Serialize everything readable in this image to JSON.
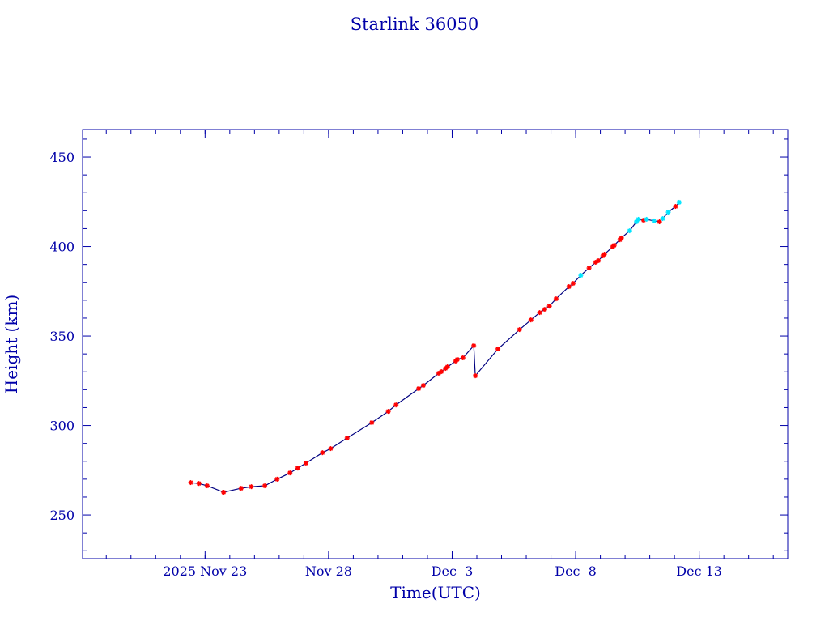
{
  "chart_data": {
    "type": "scatter",
    "title": "Starlink 36050",
    "xlabel": "Time(UTC)",
    "ylabel": "Height (km)",
    "xlim": [
      "2025-11-18T01:00",
      "2025-12-16T14:00"
    ],
    "ylim": [
      225.6,
      465.4
    ],
    "x_ticks": [
      {
        "date": "2025-11-23T00:00",
        "label": "2025 Nov 23"
      },
      {
        "date": "2025-11-28T00:00",
        "label": "Nov 28"
      },
      {
        "date": "2025-12-03T00:00",
        "label": "Dec  3"
      },
      {
        "date": "2025-12-08T00:00",
        "label": "Dec  8"
      },
      {
        "date": "2025-12-13T00:00",
        "label": "Dec 13"
      }
    ],
    "y_ticks": [
      250,
      300,
      350,
      400,
      450
    ],
    "grid": false,
    "colors": {
      "axis": "#0000a8",
      "line": "#000080",
      "marker_red": "#ff0000",
      "marker_cyan": "#00e5ff"
    },
    "points": [
      [
        "2025-11-22T10:00",
        268.1,
        "red"
      ],
      [
        "2025-11-22T18:00",
        267.6,
        "red"
      ],
      [
        "2025-11-23T02:00",
        266.3,
        "red"
      ],
      [
        "2025-11-23T18:00",
        262.7,
        "red"
      ],
      [
        "2025-11-24T11:00",
        264.9,
        "red"
      ],
      [
        "2025-11-24T21:00",
        265.8,
        "red"
      ],
      [
        "2025-11-25T10:00",
        266.3,
        "red"
      ],
      [
        "2025-11-25T22:00",
        270.0,
        "red"
      ],
      [
        "2025-11-26T10:30",
        273.5,
        "red"
      ],
      [
        "2025-11-26T18:00",
        276.2,
        "red"
      ],
      [
        "2025-11-27T02:00",
        279.0,
        "red"
      ],
      [
        "2025-11-27T18:00",
        284.8,
        "red"
      ],
      [
        "2025-11-28T02:00",
        287.1,
        "red"
      ],
      [
        "2025-11-28T18:00",
        293.0,
        "red"
      ],
      [
        "2025-11-29T18:00",
        301.6,
        "red"
      ],
      [
        "2025-11-30T10:00",
        307.9,
        "red"
      ],
      [
        "2025-11-30T17:30",
        311.5,
        "red"
      ],
      [
        "2025-12-01T15:30",
        320.6,
        "red"
      ],
      [
        "2025-12-01T20:00",
        322.4,
        "red"
      ],
      [
        "2025-12-02T11:00",
        329.2,
        "red"
      ],
      [
        "2025-12-02T13:30",
        330.1,
        "red"
      ],
      [
        "2025-12-02T17:30",
        331.9,
        "red"
      ],
      [
        "2025-12-02T19:30",
        332.8,
        "red"
      ],
      [
        "2025-12-03T03:30",
        336.0,
        "red"
      ],
      [
        "2025-12-03T05:00",
        336.9,
        "red"
      ],
      [
        "2025-12-03T10:30",
        337.8,
        "red"
      ],
      [
        "2025-12-03T21:00",
        344.6,
        "red"
      ],
      [
        "2025-12-03T22:30",
        327.8,
        "red"
      ],
      [
        "2025-12-04T20:30",
        342.8,
        "red"
      ],
      [
        "2025-12-05T17:30",
        353.6,
        "red"
      ],
      [
        "2025-12-06T04:30",
        359.0,
        "red"
      ],
      [
        "2025-12-06T13:00",
        363.1,
        "red"
      ],
      [
        "2025-12-06T18:00",
        364.9,
        "red"
      ],
      [
        "2025-12-06T22:30",
        366.7,
        "red"
      ],
      [
        "2025-12-07T05:00",
        370.8,
        "red"
      ],
      [
        "2025-12-07T17:30",
        377.6,
        "red"
      ],
      [
        "2025-12-07T21:30",
        379.4,
        "red"
      ],
      [
        "2025-12-08T05:00",
        383.9,
        "cyan"
      ],
      [
        "2025-12-08T13:00",
        388.0,
        "red"
      ],
      [
        "2025-12-08T19:30",
        391.2,
        "red"
      ],
      [
        "2025-12-08T22:00",
        392.1,
        "red"
      ],
      [
        "2025-12-09T02:30",
        394.8,
        "red"
      ],
      [
        "2025-12-09T04:00",
        395.7,
        "red"
      ],
      [
        "2025-12-09T12:00",
        399.8,
        "red"
      ],
      [
        "2025-12-09T13:30",
        400.7,
        "red"
      ],
      [
        "2025-12-09T19:00",
        403.8,
        "red"
      ],
      [
        "2025-12-09T20:30",
        404.8,
        "red"
      ],
      [
        "2025-12-10T04:30",
        408.8,
        "cyan"
      ],
      [
        "2025-12-10T11:00",
        413.8,
        "cyan"
      ],
      [
        "2025-12-10T13:00",
        415.2,
        "cyan"
      ],
      [
        "2025-12-10T18:00",
        414.7,
        "red"
      ],
      [
        "2025-12-10T21:00",
        415.2,
        "cyan"
      ],
      [
        "2025-12-11T04:00",
        414.3,
        "cyan"
      ],
      [
        "2025-12-11T09:30",
        413.8,
        "red"
      ],
      [
        "2025-12-11T12:30",
        415.6,
        "cyan"
      ],
      [
        "2025-12-11T18:00",
        419.2,
        "cyan"
      ],
      [
        "2025-12-12T01:00",
        422.4,
        "red"
      ],
      [
        "2025-12-12T04:30",
        424.7,
        "cyan"
      ]
    ]
  }
}
